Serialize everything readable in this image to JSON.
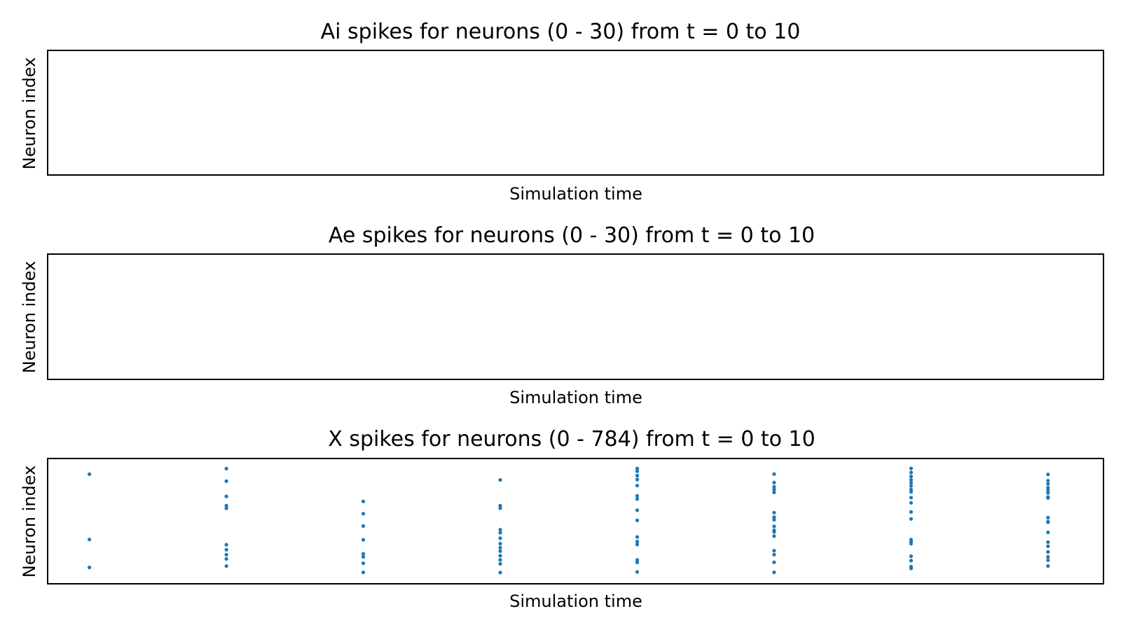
{
  "chart_data": [
    {
      "type": "scatter",
      "title": "Ai spikes for neurons (0 - 30) from t = 0 to 10",
      "xlabel": "Simulation time",
      "ylabel": "Neuron index",
      "xlim": [
        0,
        10
      ],
      "ylim": [
        0,
        30
      ],
      "points": []
    },
    {
      "type": "scatter",
      "title": "Ae spikes for neurons (0 - 30) from t = 0 to 10",
      "xlabel": "Simulation time",
      "ylabel": "Neuron index",
      "xlim": [
        0,
        10
      ],
      "ylim": [
        0,
        30
      ],
      "points": []
    },
    {
      "type": "scatter",
      "title": "X spikes for neurons (0 - 784) from t = 0 to 10",
      "xlabel": "Simulation time",
      "ylabel": "Neuron index",
      "xlim": [
        -0.3,
        7.4
      ],
      "ylim": [
        0,
        784
      ],
      "color": "#1f77b4",
      "points": [
        {
          "t": 0,
          "neurons": [
            689,
            276,
            99
          ]
        },
        {
          "t": 1,
          "neurons": [
            724,
            645,
            549,
            490,
            473,
            243,
            211,
            180,
            153,
            108
          ]
        },
        {
          "t": 2,
          "neurons": [
            517,
            439,
            361,
            274,
            185,
            166,
            126,
            68
          ]
        },
        {
          "t": 3,
          "neurons": [
            653,
            490,
            474,
            338,
            319,
            284,
            250,
            224,
            202,
            173,
            147,
            122,
            67
          ]
        },
        {
          "t": 4,
          "neurons": [
            725,
            708,
            680,
            655,
            617,
            552,
            532,
            461,
            397,
            292,
            263,
            244,
            147,
            131,
            71
          ]
        },
        {
          "t": 5,
          "neurons": [
            690,
            636,
            610,
            593,
            574,
            446,
            417,
            401,
            359,
            334,
            324,
            297,
            205,
            180,
            132,
            68
          ]
        },
        {
          "t": 6,
          "neurons": [
            726,
            700,
            675,
            653,
            634,
            615,
            592,
            577,
            541,
            508,
            450,
            406,
            275,
            263,
            250,
            170,
            142,
            104,
            93
          ]
        },
        {
          "t": 7,
          "neurons": [
            688,
            648,
            627,
            603,
            588,
            571,
            545,
            539,
            414,
            389,
            385,
            321,
            259,
            233,
            197,
            166,
            145,
            108
          ]
        }
      ]
    }
  ]
}
